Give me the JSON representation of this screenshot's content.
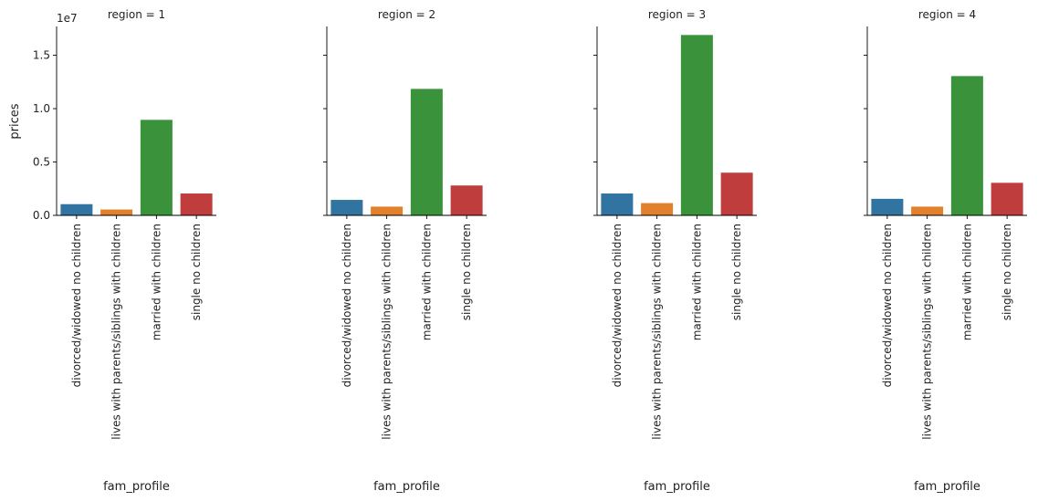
{
  "chart_data": {
    "type": "bar",
    "facet_variable": "region",
    "facets": [
      {
        "title": "region = 1",
        "values": [
          1050000,
          550000,
          8950000,
          2050000
        ]
      },
      {
        "title": "region = 2",
        "values": [
          1450000,
          820000,
          11850000,
          2800000
        ]
      },
      {
        "title": "region = 3",
        "values": [
          2050000,
          1150000,
          16900000,
          4000000
        ]
      },
      {
        "title": "region = 4",
        "values": [
          1550000,
          820000,
          13050000,
          3050000
        ]
      }
    ],
    "categories": [
      "divorced/widowed no children",
      "lives with parents/siblings with children",
      "married with children",
      "single no children"
    ],
    "colors": [
      "#3274a1",
      "#e1812c",
      "#3a923a",
      "#c03d3e"
    ],
    "xlabel": "fam_profile",
    "ylabel": "prices",
    "ylim": [
      0,
      17700000
    ],
    "y_ticks": [
      0,
      5000000,
      10000000,
      15000000
    ],
    "y_tick_labels": [
      "0.0",
      "0.5",
      "1.0",
      "1.5"
    ],
    "y_offset_label": "1e7",
    "grid": false
  }
}
